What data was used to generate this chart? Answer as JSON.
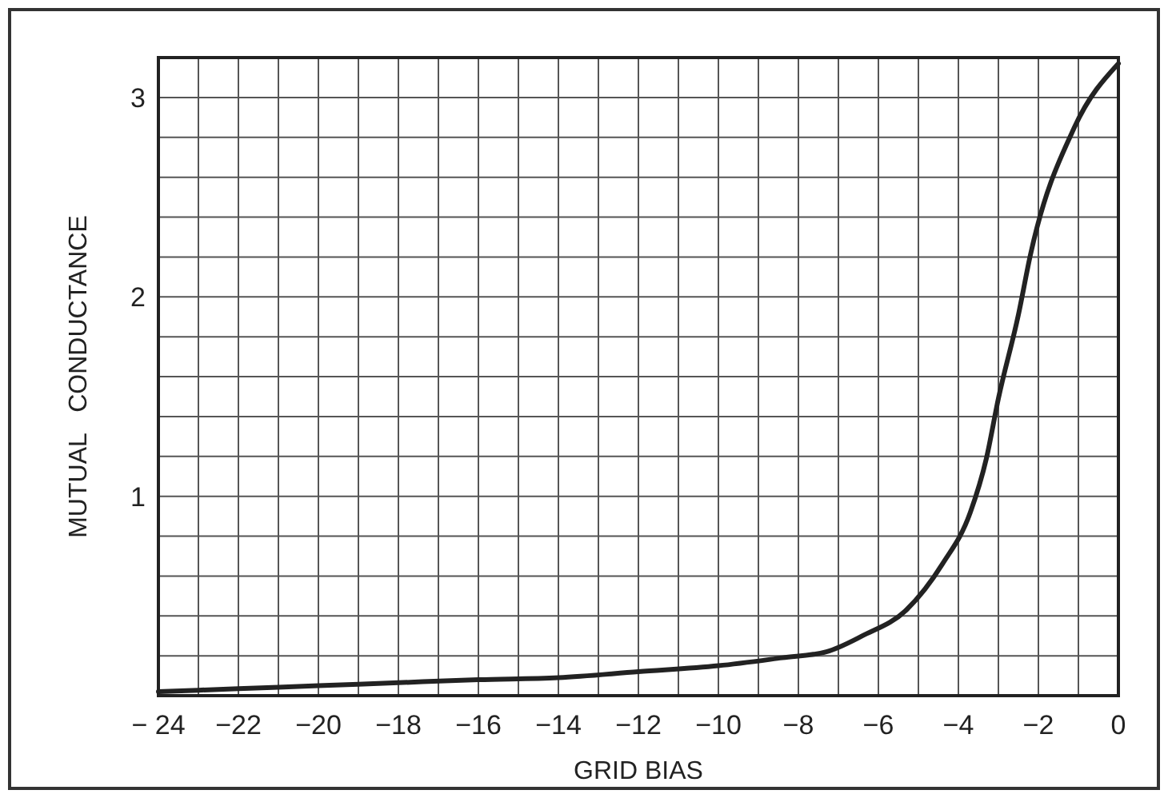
{
  "chart_data": {
    "type": "line",
    "xlabel": "GRID BIAS",
    "ylabel": "MUTUAL   CONDUCTANCE",
    "grid": true,
    "marker": "none",
    "line_style": "solid",
    "xlim": [
      -24,
      0
    ],
    "ylim": [
      0,
      3.2
    ],
    "xticks": [
      {
        "value": -24,
        "label": "− 24"
      },
      {
        "value": -23,
        "label": null
      },
      {
        "value": -22,
        "label": "−22"
      },
      {
        "value": -21,
        "label": null
      },
      {
        "value": -20,
        "label": "−20"
      },
      {
        "value": -19,
        "label": null
      },
      {
        "value": -18,
        "label": "−18"
      },
      {
        "value": -17,
        "label": null
      },
      {
        "value": -16,
        "label": "−16"
      },
      {
        "value": -15,
        "label": null
      },
      {
        "value": -14,
        "label": "−14"
      },
      {
        "value": -13,
        "label": null
      },
      {
        "value": -12,
        "label": "−12"
      },
      {
        "value": -11,
        "label": null
      },
      {
        "value": -10,
        "label": "−10"
      },
      {
        "value": -9,
        "label": null
      },
      {
        "value": -8,
        "label": "−8"
      },
      {
        "value": -7,
        "label": null
      },
      {
        "value": -6,
        "label": "−6"
      },
      {
        "value": -5,
        "label": null
      },
      {
        "value": -4,
        "label": "−4"
      },
      {
        "value": -3,
        "label": null
      },
      {
        "value": -2,
        "label": "−2"
      },
      {
        "value": -1,
        "label": null
      },
      0
    ],
    "yticks": [
      {
        "value": 0,
        "label": null
      },
      {
        "value": 0.2,
        "label": null
      },
      {
        "value": 0.4,
        "label": null
      },
      {
        "value": 0.6,
        "label": null
      },
      {
        "value": 0.8,
        "label": null
      },
      1,
      {
        "value": 1.2,
        "label": null
      },
      {
        "value": 1.4,
        "label": null
      },
      {
        "value": 1.6,
        "label": null
      },
      {
        "value": 1.8,
        "label": null
      },
      2,
      {
        "value": 2.2,
        "label": null
      },
      {
        "value": 2.4,
        "label": null
      },
      {
        "value": 2.6,
        "label": null
      },
      {
        "value": 2.8,
        "label": null
      },
      3,
      {
        "value": 3.2,
        "label": null
      }
    ],
    "series": [
      {
        "color": "#222222",
        "x": [
          -24,
          -22,
          -20,
          -18,
          -16,
          -14,
          -12,
          -10,
          -8.4,
          -7.3,
          -6.4,
          -5.3,
          -4.4,
          -3.7,
          -3.3,
          -3.0,
          -2.5,
          -2.2,
          -1.1,
          0
        ],
        "values": [
          0.02,
          0.035,
          0.05,
          0.065,
          0.08,
          0.09,
          0.12,
          0.15,
          0.19,
          0.22,
          0.3,
          0.43,
          0.66,
          0.92,
          1.19,
          1.49,
          1.91,
          2.21,
          2.85,
          3.17
        ]
      }
    ]
  }
}
